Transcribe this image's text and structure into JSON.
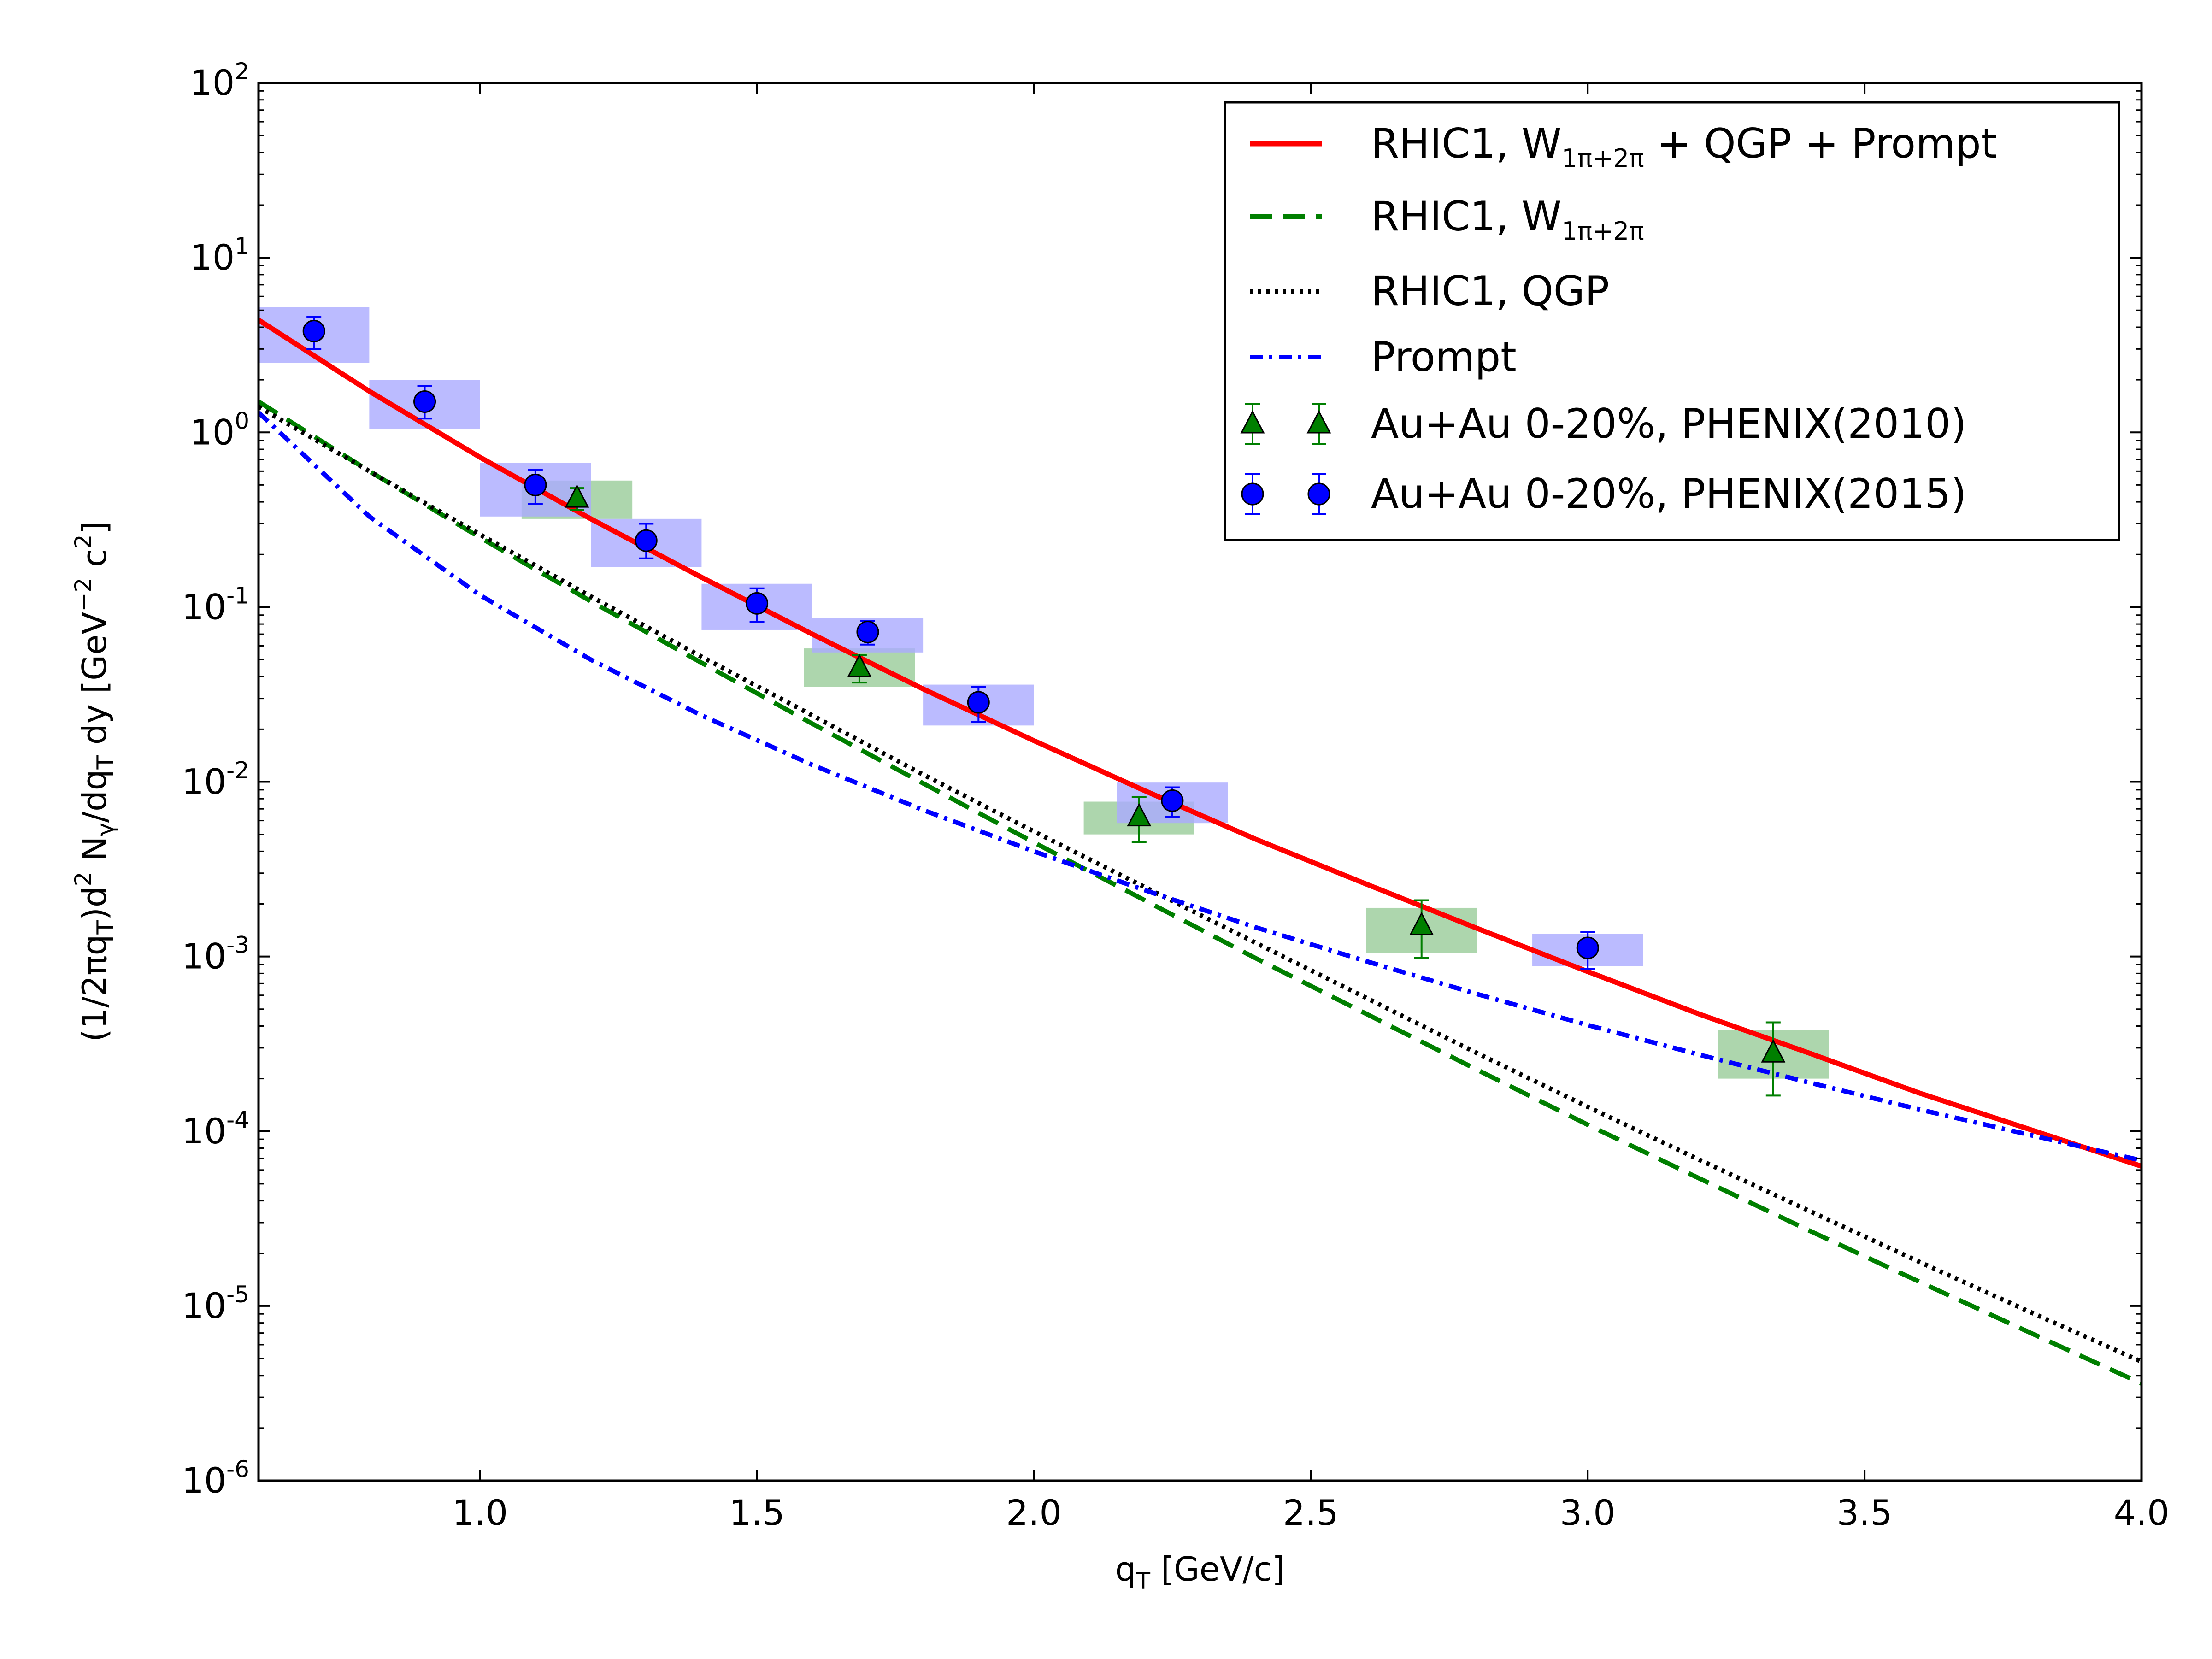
{
  "chart_data": {
    "type": "line",
    "title": "",
    "xlabel": "q",
    "xlabel_sub": "T",
    "xlabel_unit": "[GeV/c]",
    "ylabel_parts": [
      "(1/2πq",
      "T",
      ")d",
      "2",
      " N",
      "γ",
      "/dq",
      "T",
      " dy [GeV",
      "−2",
      " c",
      "2",
      "]"
    ],
    "x_scale": "linear",
    "y_scale": "log",
    "xlim": [
      0.6,
      4.0
    ],
    "ylim": [
      1e-06,
      100
    ],
    "x_ticks": [
      1.0,
      1.5,
      2.0,
      2.5,
      3.0,
      3.5,
      4.0
    ],
    "x_tick_labels": [
      "1.0",
      "1.5",
      "2.0",
      "2.5",
      "3.0",
      "3.5",
      "4.0"
    ],
    "y_ticks": [
      1e-06,
      1e-05,
      0.0001,
      0.001,
      0.01,
      0.1,
      1,
      10,
      100
    ],
    "y_tick_labels": [
      {
        "base": "10",
        "exp": "-6"
      },
      {
        "base": "10",
        "exp": "-5"
      },
      {
        "base": "10",
        "exp": "-4"
      },
      {
        "base": "10",
        "exp": "-3"
      },
      {
        "base": "10",
        "exp": "-2"
      },
      {
        "base": "10",
        "exp": "-1"
      },
      {
        "base": "10",
        "exp": "0"
      },
      {
        "base": "10",
        "exp": "1"
      },
      {
        "base": "10",
        "exp": "2"
      }
    ],
    "legend_position": "top-right",
    "series": [
      {
        "name": "RHIC1, W1π+2π + QGP + Prompt",
        "legend_main": "RHIC1, W",
        "legend_sub": "1π+2π",
        "legend_rest": " + QGP + Prompt",
        "style": "solid",
        "color": "#ff0000",
        "x": [
          0.6,
          0.8,
          1.0,
          1.2,
          1.4,
          1.6,
          1.8,
          2.0,
          2.2,
          2.4,
          2.6,
          2.8,
          3.0,
          3.2,
          3.4,
          3.6,
          3.8,
          4.0
        ],
        "y": [
          4.4,
          1.72,
          0.72,
          0.32,
          0.148,
          0.07,
          0.034,
          0.0172,
          0.0089,
          0.0047,
          0.0026,
          0.00145,
          0.00082,
          0.00047,
          0.00028,
          0.000165,
          0.000102,
          6.3e-05
        ]
      },
      {
        "name": "RHIC1, W1π+2π",
        "legend_main": "RHIC1, W",
        "legend_sub": "1π+2π",
        "legend_rest": "",
        "style": "dashed",
        "color": "#007f00",
        "x": [
          0.6,
          0.8,
          1.0,
          1.2,
          1.4,
          1.6,
          1.8,
          2.0,
          2.2,
          2.4,
          2.6,
          2.8,
          3.0,
          3.2,
          3.4,
          3.6,
          3.8,
          4.0
        ],
        "y": [
          1.5,
          0.6,
          0.25,
          0.108,
          0.048,
          0.0215,
          0.0098,
          0.0045,
          0.0021,
          0.00098,
          0.00047,
          0.000225,
          0.000109,
          5.4e-05,
          2.7e-05,
          1.37e-05,
          7e-06,
          3.6e-06
        ]
      },
      {
        "name": "RHIC1, QGP",
        "legend_main": "RHIC1, QGP",
        "legend_sub": "",
        "legend_rest": "",
        "style": "dotted",
        "color": "#000000",
        "x": [
          0.6,
          0.8,
          1.0,
          1.2,
          1.4,
          1.6,
          1.8,
          2.0,
          2.2,
          2.4,
          2.6,
          2.8,
          3.0,
          3.2,
          3.4,
          3.6,
          3.8,
          4.0
        ],
        "y": [
          1.4,
          0.6,
          0.26,
          0.115,
          0.052,
          0.024,
          0.011,
          0.0052,
          0.0025,
          0.0012,
          0.00058,
          0.00028,
          0.000138,
          6.9e-05,
          3.5e-05,
          1.78e-05,
          9.2e-06,
          4.8e-06
        ]
      },
      {
        "name": "Prompt",
        "legend_main": "Prompt",
        "legend_sub": "",
        "legend_rest": "",
        "style": "dashdot",
        "color": "#0000ff",
        "x": [
          0.6,
          0.8,
          1.0,
          1.2,
          1.4,
          1.6,
          1.8,
          2.0,
          2.2,
          2.4,
          2.6,
          2.8,
          3.0,
          3.2,
          3.4,
          3.6,
          3.8,
          4.0
        ],
        "y": [
          1.3,
          0.33,
          0.117,
          0.05,
          0.024,
          0.0125,
          0.0069,
          0.004,
          0.0024,
          0.00147,
          0.00094,
          0.00061,
          0.000405,
          0.000275,
          0.00019,
          0.000133,
          9.5e-05,
          6.8e-05
        ]
      }
    ],
    "data_sets": [
      {
        "name": "Au+Au 0-20%, PHENIX(2010)",
        "marker": "triangle",
        "color": "#007f00",
        "box_color": "#99cc99",
        "points": [
          {
            "x": 1.175,
            "y": 0.42,
            "err_lo": 0.36,
            "err_hi": 0.48,
            "box_xw": 0.1,
            "box_lo": 0.32,
            "box_hi": 0.53
          },
          {
            "x": 1.685,
            "y": 0.045,
            "err_lo": 0.037,
            "err_hi": 0.053,
            "box_xw": 0.1,
            "box_lo": 0.035,
            "box_hi": 0.058
          },
          {
            "x": 2.19,
            "y": 0.0063,
            "err_lo": 0.0045,
            "err_hi": 0.0082,
            "box_xw": 0.1,
            "box_lo": 0.005,
            "box_hi": 0.0077
          },
          {
            "x": 2.7,
            "y": 0.0015,
            "err_lo": 0.00098,
            "err_hi": 0.0021,
            "box_xw": 0.1,
            "box_lo": 0.00105,
            "box_hi": 0.0019
          },
          {
            "x": 3.335,
            "y": 0.00028,
            "err_lo": 0.00016,
            "err_hi": 0.00042,
            "box_xw": 0.1,
            "box_lo": 0.0002,
            "box_hi": 0.00038
          }
        ]
      },
      {
        "name": "Au+Au 0-20%, PHENIX(2015)",
        "marker": "circle",
        "color": "#0000ff",
        "box_color": "#aaaaff",
        "points": [
          {
            "x": 0.7,
            "y": 3.8,
            "err_lo": 3.0,
            "err_hi": 4.6,
            "box_xw": 0.1,
            "box_lo": 2.5,
            "box_hi": 5.2
          },
          {
            "x": 0.9,
            "y": 1.5,
            "err_lo": 1.2,
            "err_hi": 1.85,
            "box_xw": 0.1,
            "box_lo": 1.05,
            "box_hi": 2.0
          },
          {
            "x": 1.1,
            "y": 0.5,
            "err_lo": 0.39,
            "err_hi": 0.61,
            "box_xw": 0.1,
            "box_lo": 0.33,
            "box_hi": 0.67
          },
          {
            "x": 1.3,
            "y": 0.24,
            "err_lo": 0.19,
            "err_hi": 0.3,
            "box_xw": 0.1,
            "box_lo": 0.17,
            "box_hi": 0.32
          },
          {
            "x": 1.5,
            "y": 0.105,
            "err_lo": 0.082,
            "err_hi": 0.128,
            "box_xw": 0.1,
            "box_lo": 0.074,
            "box_hi": 0.136
          },
          {
            "x": 1.7,
            "y": 0.072,
            "err_lo": 0.061,
            "err_hi": 0.083,
            "box_xw": 0.1,
            "box_lo": 0.055,
            "box_hi": 0.087
          },
          {
            "x": 1.9,
            "y": 0.0285,
            "err_lo": 0.022,
            "err_hi": 0.035,
            "box_xw": 0.1,
            "box_lo": 0.021,
            "box_hi": 0.036
          },
          {
            "x": 2.25,
            "y": 0.0078,
            "err_lo": 0.0063,
            "err_hi": 0.0093,
            "box_xw": 0.1,
            "box_lo": 0.0058,
            "box_hi": 0.0099
          },
          {
            "x": 3.0,
            "y": 0.00112,
            "err_lo": 0.00085,
            "err_hi": 0.00138,
            "box_xw": 0.1,
            "box_lo": 0.00088,
            "box_hi": 0.00135
          }
        ]
      }
    ]
  }
}
